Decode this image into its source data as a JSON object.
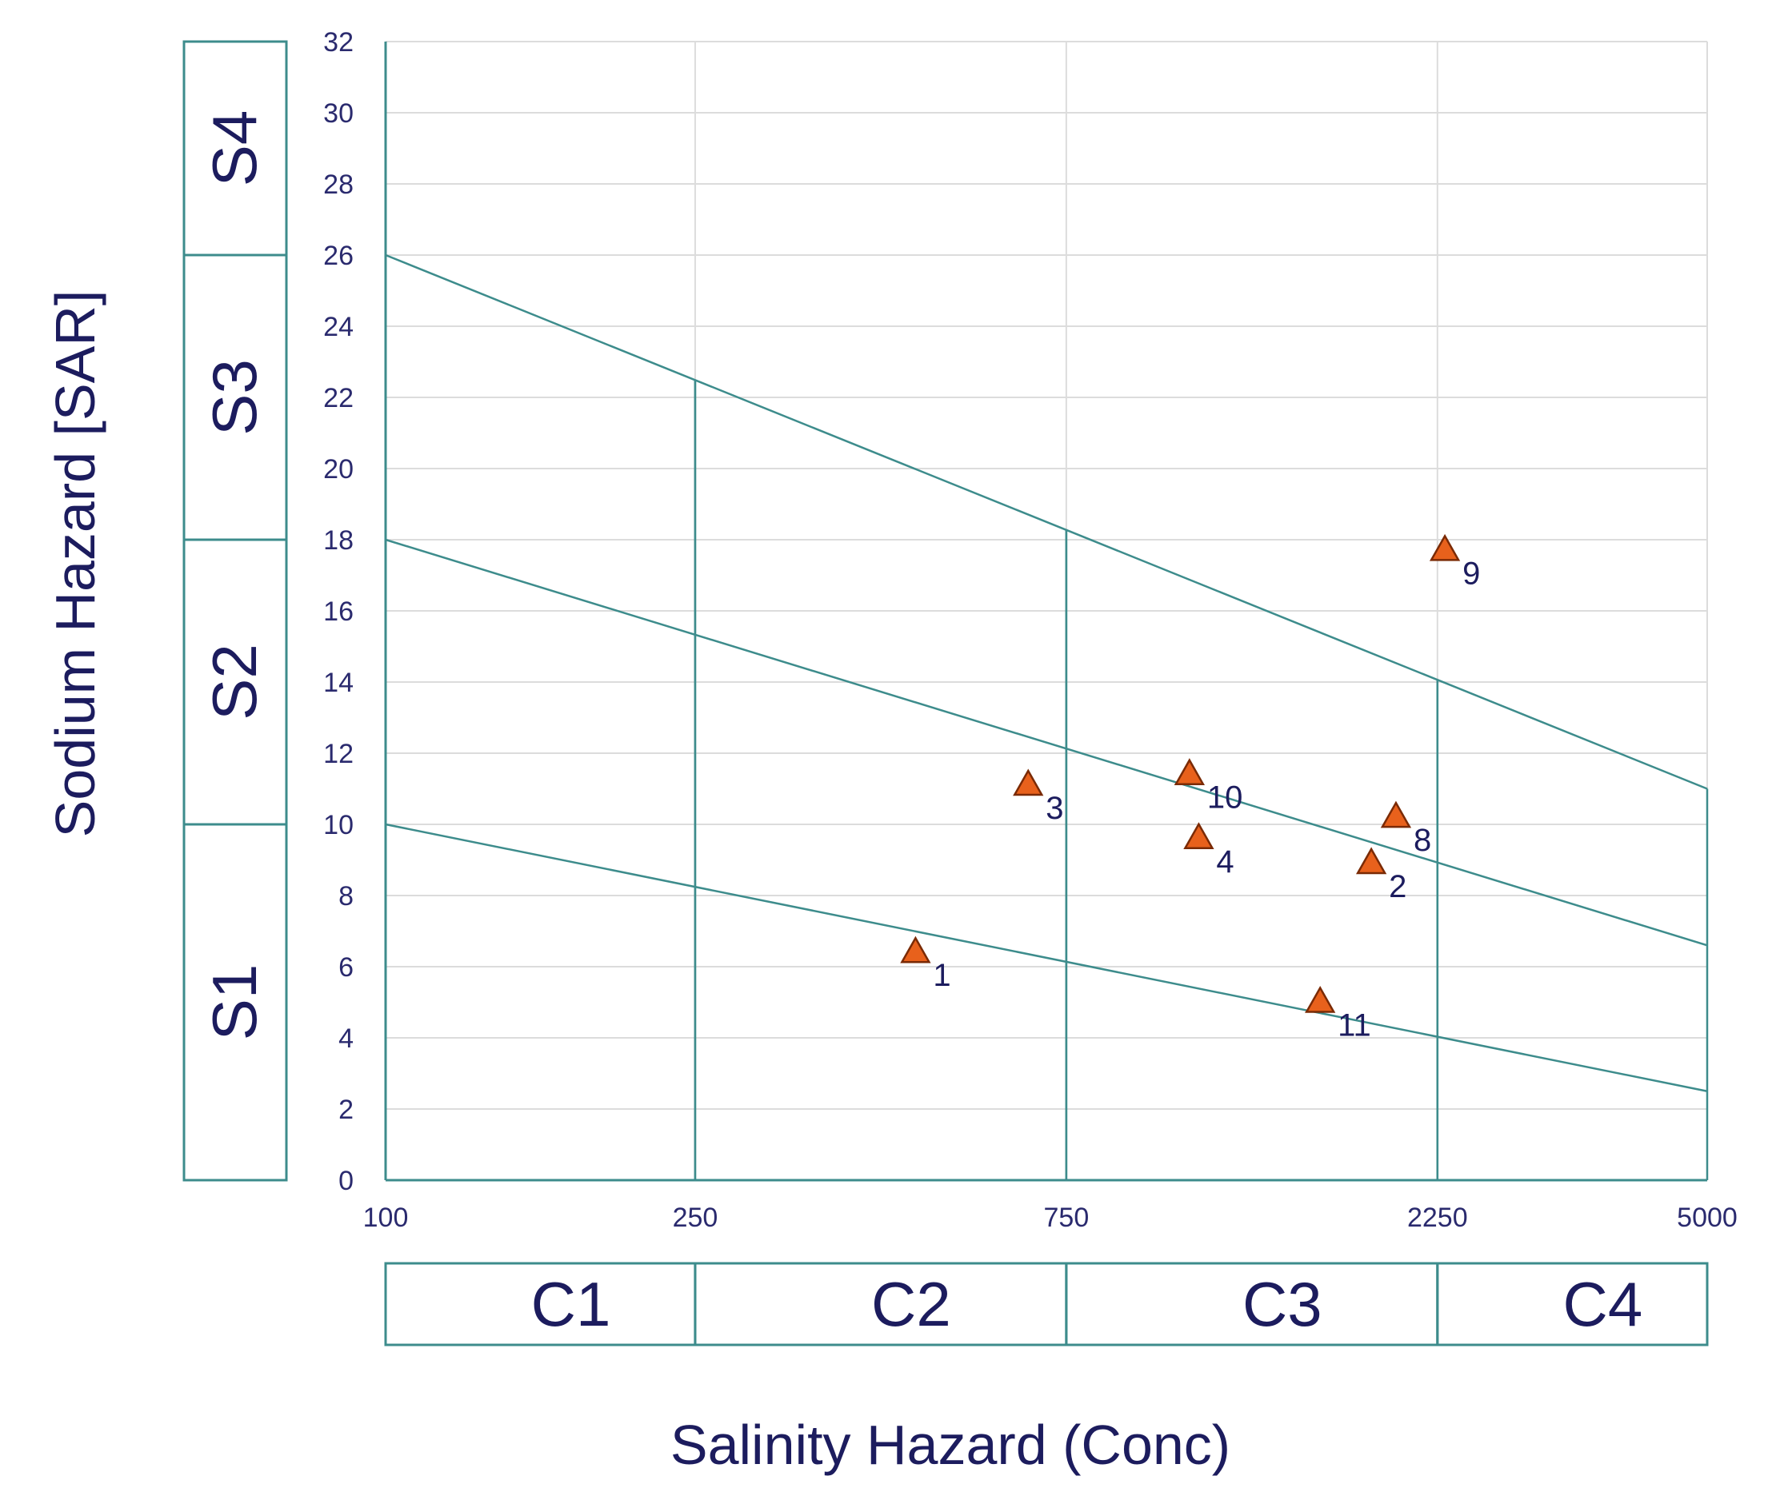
{
  "chart_data": {
    "type": "scatter",
    "title": "",
    "xlabel": "Salinity Hazard (Conc)",
    "ylabel": "Sodium Hazard [SAR]",
    "x_scale": "log",
    "xlim": [
      100,
      5000
    ],
    "ylim": [
      0,
      32
    ],
    "grid": true,
    "x_ticks": [
      100,
      250,
      750,
      2250,
      5000
    ],
    "x_tick_labels": [
      "100",
      "250",
      "750",
      "2250",
      "5000"
    ],
    "y_ticks": [
      0,
      2,
      4,
      6,
      8,
      10,
      12,
      14,
      16,
      18,
      20,
      22,
      24,
      26,
      28,
      30,
      32
    ],
    "y_tick_labels": [
      "0",
      "2",
      "4",
      "6",
      "8",
      "10",
      "12",
      "14",
      "16",
      "18",
      "20",
      "22",
      "24",
      "26",
      "28",
      "30",
      "32"
    ],
    "salinity_classes": [
      {
        "label": "C1",
        "from": 100,
        "to": 250
      },
      {
        "label": "C2",
        "from": 250,
        "to": 750
      },
      {
        "label": "C3",
        "from": 750,
        "to": 2250
      },
      {
        "label": "C4",
        "from": 2250,
        "to": 5000
      }
    ],
    "sodium_classes": [
      {
        "label": "S1",
        "from": 0,
        "to": 10
      },
      {
        "label": "S2",
        "from": 10,
        "to": 18
      },
      {
        "label": "S3",
        "from": 18,
        "to": 26
      },
      {
        "label": "S4",
        "from": 26,
        "to": 32
      }
    ],
    "boundary_lines": [
      {
        "name": "S1-S2 boundary",
        "points": [
          [
            100,
            10
          ],
          [
            5000,
            2.5
          ]
        ]
      },
      {
        "name": "S2-S3 boundary",
        "points": [
          [
            100,
            18
          ],
          [
            5000,
            6.6
          ]
        ]
      },
      {
        "name": "S3-S4 boundary",
        "points": [
          [
            100,
            26
          ],
          [
            5000,
            11
          ]
        ]
      }
    ],
    "series": [
      {
        "name": "Samples",
        "marker": "triangle",
        "color": "#e8611c",
        "points": [
          {
            "label": "1",
            "x": 480,
            "y": 6.4
          },
          {
            "label": "2",
            "x": 1850,
            "y": 8.9
          },
          {
            "label": "3",
            "x": 670,
            "y": 11.1
          },
          {
            "label": "4",
            "x": 1110,
            "y": 9.6
          },
          {
            "label": "8",
            "x": 1990,
            "y": 10.2
          },
          {
            "label": "9",
            "x": 2300,
            "y": 17.7
          },
          {
            "label": "10",
            "x": 1080,
            "y": 11.4
          },
          {
            "label": "11",
            "x": 1590,
            "y": 5.0
          }
        ]
      }
    ],
    "colors": {
      "axis_line": "#3d8c8c",
      "grid": "#dcdcdc",
      "marker_fill": "#e8611c",
      "marker_stroke": "#7a2a05",
      "text": "#1c1c5e"
    }
  }
}
